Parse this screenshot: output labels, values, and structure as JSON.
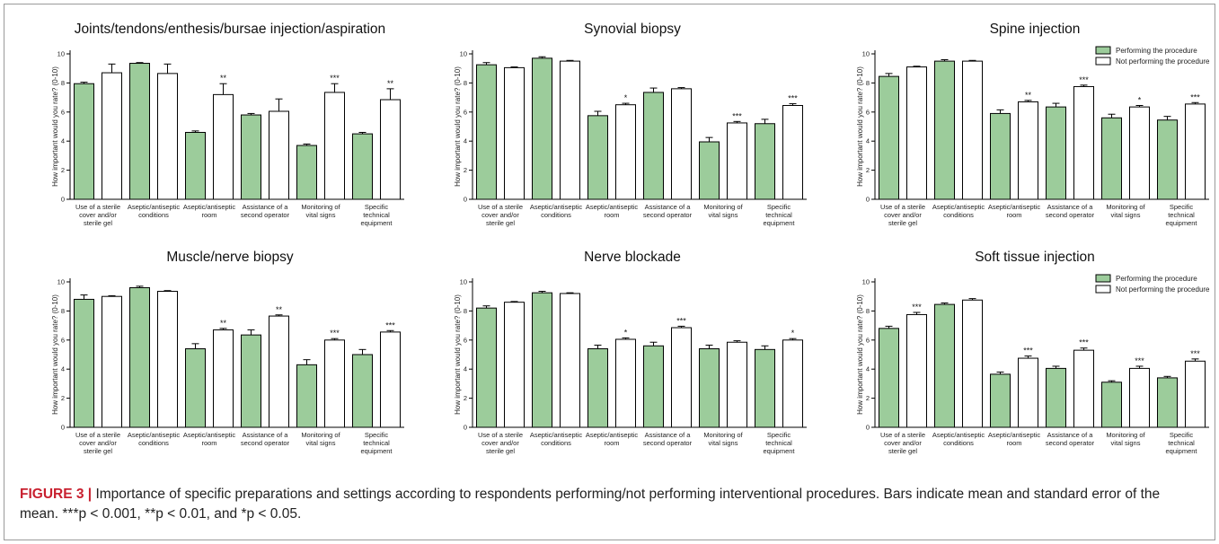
{
  "colors": {
    "performing": "#9ccc9b",
    "not_performing": "#ffffff",
    "stroke": "#000000",
    "caption_label": "#c8202f"
  },
  "legend": [
    "Performing the procedure",
    "Not performing the procedure"
  ],
  "chart_data": [
    {
      "type": "bar",
      "title": "Joints/tendons/enthesis/bursae injection/aspiration",
      "ylabel": "How important would you rate? (0-10)",
      "ylim": [
        0,
        10
      ],
      "yticks": [
        0,
        2,
        4,
        6,
        8,
        10
      ],
      "categories": [
        "Use of a sterile cover and/or sterile gel",
        "Aseptic/antiseptic conditions",
        "Aseptic/antiseptic room",
        "Assistance of a second operator",
        "Monitoring of vital signs",
        "Specific technical equipment"
      ],
      "series": [
        {
          "name": "Performing the procedure",
          "values": [
            7.95,
            9.35,
            4.6,
            5.8,
            3.7,
            4.5
          ],
          "errors": [
            0.1,
            0.05,
            0.1,
            0.1,
            0.1,
            0.1
          ]
        },
        {
          "name": "Not performing the procedure",
          "values": [
            8.7,
            8.65,
            7.2,
            6.05,
            7.35,
            6.85
          ],
          "errors": [
            0.6,
            0.65,
            0.75,
            0.85,
            0.6,
            0.75
          ]
        }
      ],
      "significance": [
        "",
        "",
        "**",
        "",
        "***",
        "**"
      ]
    },
    {
      "type": "bar",
      "title": "Synovial biopsy",
      "ylabel": "How important would you rate? (0-10)",
      "ylim": [
        0,
        10
      ],
      "yticks": [
        0,
        2,
        4,
        6,
        8,
        10
      ],
      "categories": [
        "Use of a sterile cover and/or sterile gel",
        "Aseptic/antiseptic conditions",
        "Aseptic/antiseptic room",
        "Assistance of a second operator",
        "Monitoring of vital signs",
        "Specific technical equipment"
      ],
      "series": [
        {
          "name": "Performing the procedure",
          "values": [
            9.25,
            9.7,
            5.75,
            7.35,
            3.95,
            5.2
          ],
          "errors": [
            0.15,
            0.1,
            0.3,
            0.3,
            0.3,
            0.3
          ]
        },
        {
          "name": "Not performing the procedure",
          "values": [
            9.05,
            9.5,
            6.5,
            7.6,
            5.25,
            6.45
          ],
          "errors": [
            0.05,
            0.05,
            0.1,
            0.08,
            0.1,
            0.12
          ]
        }
      ],
      "significance": [
        "",
        "",
        "*",
        "",
        "***",
        "***"
      ]
    },
    {
      "type": "bar",
      "title": "Spine injection",
      "ylabel": "How important would you rate? (0-10)",
      "ylim": [
        0,
        10
      ],
      "yticks": [
        0,
        2,
        4,
        6,
        8,
        10
      ],
      "categories": [
        "Use of a sterile cover and/or sterile gel",
        "Aseptic/antiseptic conditions",
        "Aseptic/antiseptic room",
        "Assistance of a second operator",
        "Monitoring of vital signs",
        "Specific technical equipment"
      ],
      "series": [
        {
          "name": "Performing the procedure",
          "values": [
            8.45,
            9.5,
            5.9,
            6.35,
            5.6,
            5.45
          ],
          "errors": [
            0.2,
            0.1,
            0.25,
            0.25,
            0.25,
            0.25
          ]
        },
        {
          "name": "Not performing the procedure",
          "values": [
            9.1,
            9.5,
            6.7,
            7.75,
            6.35,
            6.55
          ],
          "errors": [
            0.05,
            0.05,
            0.1,
            0.1,
            0.1,
            0.1
          ]
        }
      ],
      "significance": [
        "",
        "",
        "**",
        "***",
        "*",
        "***"
      ],
      "legend_position": "top-right"
    },
    {
      "type": "bar",
      "title": "Muscle/nerve biopsy",
      "ylabel": "How important would you rate? (0-10)",
      "ylim": [
        0,
        10
      ],
      "yticks": [
        0,
        2,
        4,
        6,
        8,
        10
      ],
      "categories": [
        "Use of a sterile cover and/or sterile gel",
        "Aseptic/antiseptic conditions",
        "Aseptic/antiseptic room",
        "Assistance of a second operator",
        "Monitoring of vital signs",
        "Specific technical equipment"
      ],
      "series": [
        {
          "name": "Performing the procedure",
          "values": [
            8.8,
            9.6,
            5.4,
            6.35,
            4.3,
            5.0
          ],
          "errors": [
            0.3,
            0.1,
            0.35,
            0.35,
            0.35,
            0.35
          ]
        },
        {
          "name": "Not performing the procedure",
          "values": [
            9.0,
            9.35,
            6.7,
            7.65,
            6.0,
            6.55
          ],
          "errors": [
            0.05,
            0.05,
            0.1,
            0.08,
            0.1,
            0.1
          ]
        }
      ],
      "significance": [
        "",
        "",
        "**",
        "**",
        "***",
        "***"
      ]
    },
    {
      "type": "bar",
      "title": "Nerve blockade",
      "ylabel": "How important would you rate? (0-10)",
      "ylim": [
        0,
        10
      ],
      "yticks": [
        0,
        2,
        4,
        6,
        8,
        10
      ],
      "categories": [
        "Use of a sterile cover and/or sterile gel",
        "Aseptic/antiseptic conditions",
        "Aseptic/antiseptic room",
        "Assistance of a second operator",
        "Monitoring of vital signs",
        "Specific technical equipment"
      ],
      "series": [
        {
          "name": "Performing the procedure",
          "values": [
            8.2,
            9.25,
            5.4,
            5.6,
            5.4,
            5.35
          ],
          "errors": [
            0.15,
            0.1,
            0.25,
            0.25,
            0.25,
            0.25
          ]
        },
        {
          "name": "Not performing the procedure",
          "values": [
            8.6,
            9.2,
            6.05,
            6.85,
            5.85,
            6.0
          ],
          "errors": [
            0.05,
            0.05,
            0.1,
            0.1,
            0.1,
            0.1
          ]
        }
      ],
      "significance": [
        "",
        "",
        "*",
        "***",
        "",
        "*"
      ]
    },
    {
      "type": "bar",
      "title": "Soft tissue injection",
      "ylabel": "How important would you rate? (0-10)",
      "ylim": [
        0,
        10
      ],
      "yticks": [
        0,
        2,
        4,
        6,
        8,
        10
      ],
      "categories": [
        "Use of a sterile cover and/or sterile gel",
        "Aseptic/antiseptic conditions",
        "Aseptic/antiseptic room",
        "Assistance of a second operator",
        "Monitoring of vital signs",
        "Specific technical equipment"
      ],
      "series": [
        {
          "name": "Performing the procedure",
          "values": [
            6.8,
            8.45,
            3.65,
            4.05,
            3.1,
            3.4
          ],
          "errors": [
            0.15,
            0.1,
            0.15,
            0.15,
            0.1,
            0.1
          ]
        },
        {
          "name": "Not performing the procedure",
          "values": [
            7.75,
            8.75,
            4.75,
            5.3,
            4.05,
            4.55
          ],
          "errors": [
            0.15,
            0.1,
            0.15,
            0.15,
            0.15,
            0.15
          ]
        }
      ],
      "significance": [
        "***",
        "",
        "***",
        "***",
        "***",
        "***"
      ],
      "legend_position": "top-right"
    }
  ],
  "caption": {
    "label": "FIGURE 3 |",
    "text": " Importance of specific preparations and settings according to respondents performing/not performing interventional procedures. Bars indicate mean and standard error of the mean. ***p < 0.001, **p < 0.01, and *p < 0.05."
  }
}
